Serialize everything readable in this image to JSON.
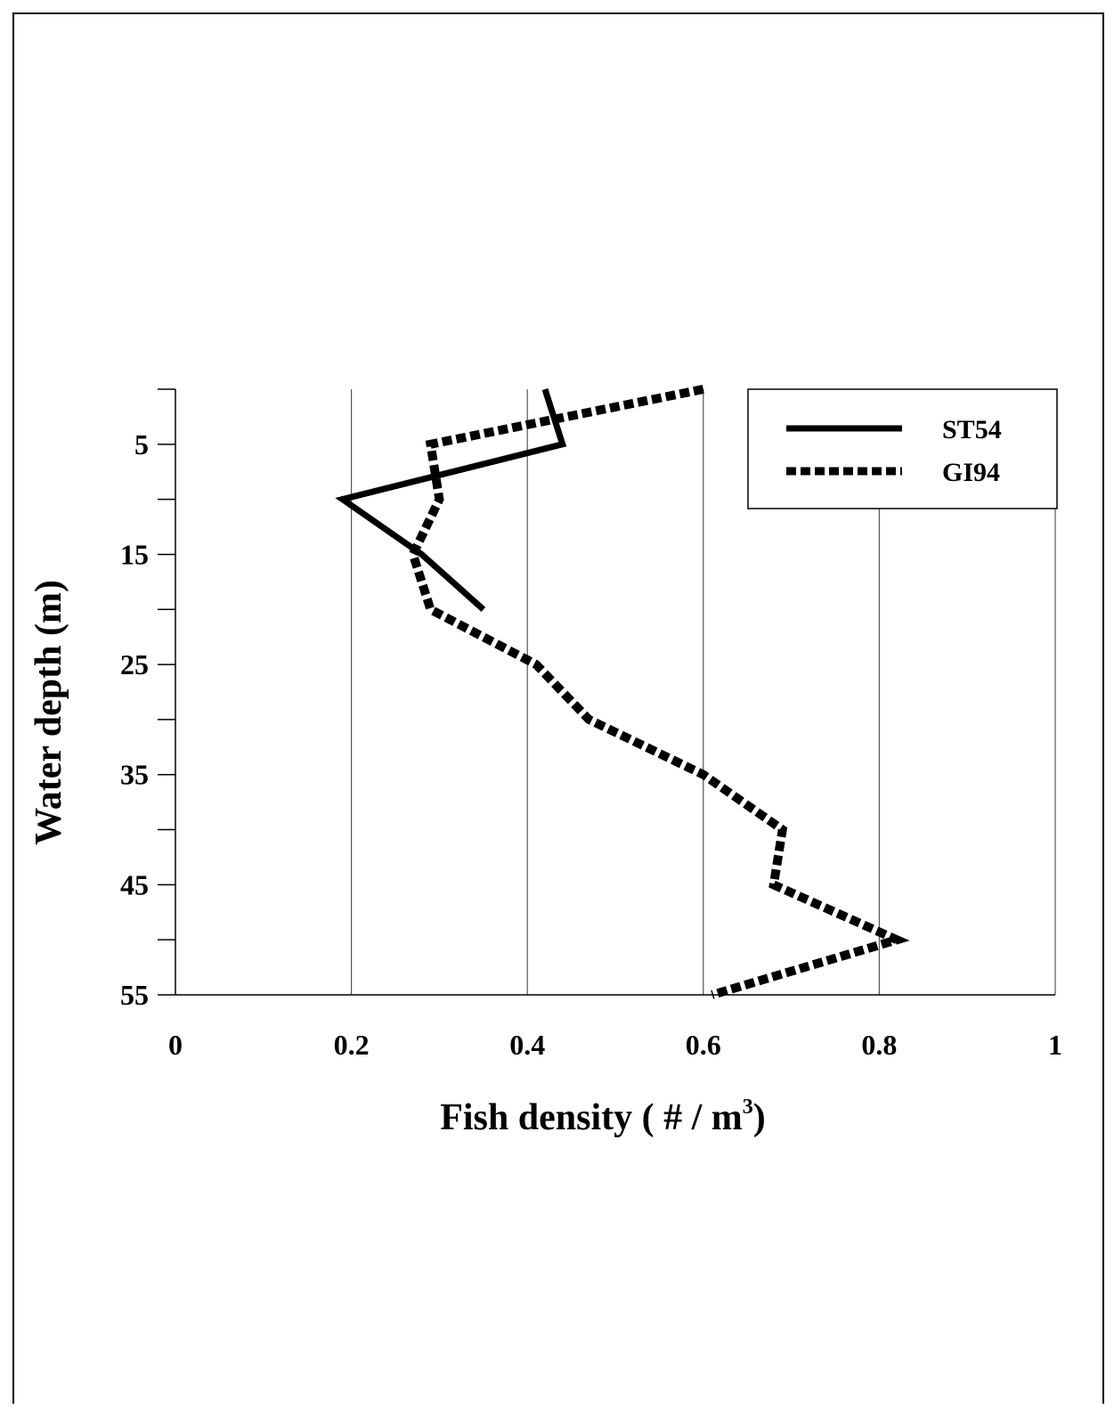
{
  "chart_data": {
    "type": "line",
    "orientation": "vertical-profile",
    "xlabel_main": "Fish density ( # / m",
    "xlabel_sup": "3",
    "xlabel_end": ")",
    "ylabel": "Water depth (m)",
    "xlim": [
      0,
      1
    ],
    "ylim": [
      0,
      55
    ],
    "y_inverted": true,
    "x_ticks": [
      0,
      0.2,
      0.4,
      0.6,
      0.8,
      1
    ],
    "x_tick_labels": [
      "0",
      "0.2",
      "0.4",
      "0.6",
      "0.8",
      "1"
    ],
    "y_ticks": [
      5,
      15,
      25,
      35,
      45,
      55
    ],
    "y_tick_labels": [
      "5",
      "15",
      "25",
      "35",
      "45",
      "55"
    ],
    "y_minor_ticks": [
      0,
      10,
      20,
      30,
      40,
      50
    ],
    "grid": "vertical",
    "legend_position": "top-right",
    "series": [
      {
        "name": "ST54",
        "style": "solid",
        "points": [
          {
            "x": 0.42,
            "y": 0
          },
          {
            "x": 0.44,
            "y": 5
          },
          {
            "x": 0.19,
            "y": 10
          },
          {
            "x": 0.28,
            "y": 15
          },
          {
            "x": 0.35,
            "y": 20
          }
        ]
      },
      {
        "name": "GI94",
        "style": "dashed",
        "points": [
          {
            "x": 0.6,
            "y": 0
          },
          {
            "x": 0.29,
            "y": 5
          },
          {
            "x": 0.3,
            "y": 10
          },
          {
            "x": 0.27,
            "y": 15
          },
          {
            "x": 0.29,
            "y": 20
          },
          {
            "x": 0.41,
            "y": 25
          },
          {
            "x": 0.47,
            "y": 30
          },
          {
            "x": 0.6,
            "y": 35
          },
          {
            "x": 0.69,
            "y": 40
          },
          {
            "x": 0.68,
            "y": 45
          },
          {
            "x": 0.82,
            "y": 50
          },
          {
            "x": 0.61,
            "y": 55
          }
        ]
      }
    ]
  }
}
